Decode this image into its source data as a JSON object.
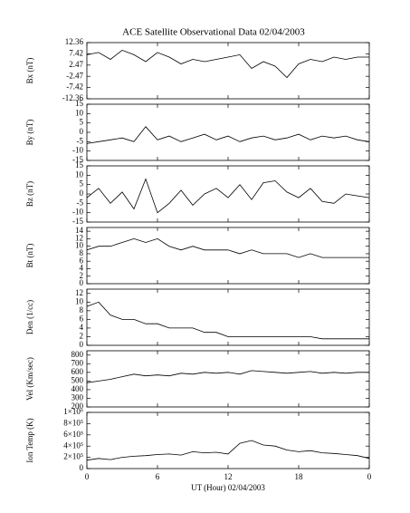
{
  "chart_data": [
    {
      "type": "line",
      "title": "ACE Satellite Observational Data   02/04/2003",
      "ylabel": "Bx (nT)",
      "color": "#000000",
      "x": [
        0,
        1,
        2,
        3,
        4,
        5,
        6,
        7,
        8,
        9,
        10,
        11,
        12,
        13,
        14,
        15,
        16,
        17,
        18,
        19,
        20,
        21,
        22,
        23,
        24
      ],
      "xlim": [
        0,
        24
      ],
      "values": [
        7,
        8,
        5,
        9,
        7,
        4,
        8,
        6,
        3,
        5,
        4,
        5,
        6,
        7,
        1,
        4,
        2,
        -3,
        3,
        5,
        4,
        6,
        5,
        6,
        6
      ],
      "ylim": [
        -12.36,
        12.36
      ],
      "yticks": [
        -12.36,
        -7.42,
        -2.47,
        2.47,
        7.42,
        12.36
      ]
    },
    {
      "type": "line",
      "ylabel": "By (nT)",
      "color": "#000000",
      "x": [
        0,
        1,
        2,
        3,
        4,
        5,
        6,
        7,
        8,
        9,
        10,
        11,
        12,
        13,
        14,
        15,
        16,
        17,
        18,
        19,
        20,
        21,
        22,
        23,
        24
      ],
      "xlim": [
        0,
        24
      ],
      "values": [
        -6,
        -5,
        -4,
        -3,
        -5,
        3,
        -4,
        -2,
        -5,
        -3,
        -1,
        -4,
        -2,
        -5,
        -3,
        -2,
        -4,
        -3,
        -1,
        -4,
        -2,
        -3,
        -2,
        -4,
        -5
      ],
      "ylim": [
        -15,
        15
      ],
      "yticks": [
        -15,
        -10,
        -5,
        0,
        5,
        10,
        15
      ]
    },
    {
      "type": "line",
      "ylabel": "Bz (nT)",
      "color": "#000000",
      "x": [
        0,
        1,
        2,
        3,
        4,
        5,
        6,
        7,
        8,
        9,
        10,
        11,
        12,
        13,
        14,
        15,
        16,
        17,
        18,
        19,
        20,
        21,
        22,
        23,
        24
      ],
      "xlim": [
        0,
        24
      ],
      "values": [
        -2,
        3,
        -5,
        1,
        -8,
        8,
        -10,
        -5,
        2,
        -6,
        0,
        3,
        -2,
        5,
        -3,
        6,
        7,
        1,
        -2,
        3,
        -4,
        -5,
        0,
        -1,
        -2
      ],
      "ylim": [
        -15,
        15
      ],
      "yticks": [
        -15,
        -10,
        -5,
        0,
        5,
        10,
        15
      ]
    },
    {
      "type": "line",
      "ylabel": "Bt (nT)",
      "color": "#000000",
      "x": [
        0,
        1,
        2,
        3,
        4,
        5,
        6,
        7,
        8,
        9,
        10,
        11,
        12,
        13,
        14,
        15,
        16,
        17,
        18,
        19,
        20,
        21,
        22,
        23,
        24
      ],
      "xlim": [
        0,
        24
      ],
      "values": [
        9,
        10,
        10,
        11,
        12,
        11,
        12,
        10,
        9,
        10,
        9,
        9,
        9,
        8,
        9,
        8,
        8,
        8,
        7,
        8,
        7,
        7,
        7,
        7,
        7
      ],
      "ylim": [
        0,
        15
      ],
      "yticks": [
        0,
        2,
        4,
        6,
        8,
        10,
        12,
        14
      ]
    },
    {
      "type": "line",
      "ylabel": "Den (1/cc)",
      "color": "#000000",
      "x": [
        0,
        1,
        2,
        3,
        4,
        5,
        6,
        7,
        8,
        9,
        10,
        11,
        12,
        13,
        14,
        15,
        16,
        17,
        18,
        19,
        20,
        21,
        22,
        23,
        24
      ],
      "xlim": [
        0,
        24
      ],
      "values": [
        9,
        10,
        7,
        6,
        6,
        5,
        5,
        4,
        4,
        4,
        3,
        3,
        2,
        2,
        2,
        2,
        2,
        2,
        2,
        2,
        1.5,
        1.5,
        1.5,
        1.5,
        1.5
      ],
      "ylim": [
        0,
        13
      ],
      "yticks": [
        0,
        2,
        4,
        6,
        8,
        10,
        12
      ]
    },
    {
      "type": "line",
      "ylabel": "Vel (Km/sec)",
      "color": "#000000",
      "x": [
        0,
        1,
        2,
        3,
        4,
        5,
        6,
        7,
        8,
        9,
        10,
        11,
        12,
        13,
        14,
        15,
        16,
        17,
        18,
        19,
        20,
        21,
        22,
        23,
        24
      ],
      "xlim": [
        0,
        24
      ],
      "values": [
        480,
        500,
        520,
        550,
        580,
        560,
        570,
        560,
        590,
        580,
        600,
        590,
        600,
        580,
        620,
        610,
        600,
        590,
        600,
        610,
        590,
        600,
        590,
        600,
        600
      ],
      "ylim": [
        200,
        850
      ],
      "yticks": [
        200,
        300,
        400,
        500,
        600,
        700,
        800
      ]
    },
    {
      "type": "line",
      "ylabel": "Ion Temp (K)",
      "xlabel": "UT (Hour)   02/04/2003",
      "color": "#000000",
      "x": [
        0,
        1,
        2,
        3,
        4,
        5,
        6,
        7,
        8,
        9,
        10,
        11,
        12,
        13,
        14,
        15,
        16,
        17,
        18,
        19,
        20,
        21,
        22,
        23,
        24
      ],
      "xlim": [
        0,
        24
      ],
      "values": [
        150000,
        180000,
        160000,
        200000,
        220000,
        230000,
        250000,
        260000,
        240000,
        300000,
        280000,
        290000,
        260000,
        450000,
        500000,
        420000,
        400000,
        330000,
        300000,
        320000,
        280000,
        270000,
        250000,
        230000,
        180000
      ],
      "ylim": [
        0,
        1000000
      ],
      "yticks": [
        0,
        {
          "value": 200000,
          "label": "2×10⁵"
        },
        {
          "value": 400000,
          "label": "4×10⁵"
        },
        {
          "value": 600000,
          "label": "6×10⁵"
        },
        {
          "value": 800000,
          "label": "8×10⁵"
        },
        {
          "value": 1000000,
          "label": "1×10⁶"
        }
      ],
      "xticks": [
        0,
        6,
        12,
        18,
        {
          "value": 24,
          "label": "0"
        }
      ]
    }
  ]
}
